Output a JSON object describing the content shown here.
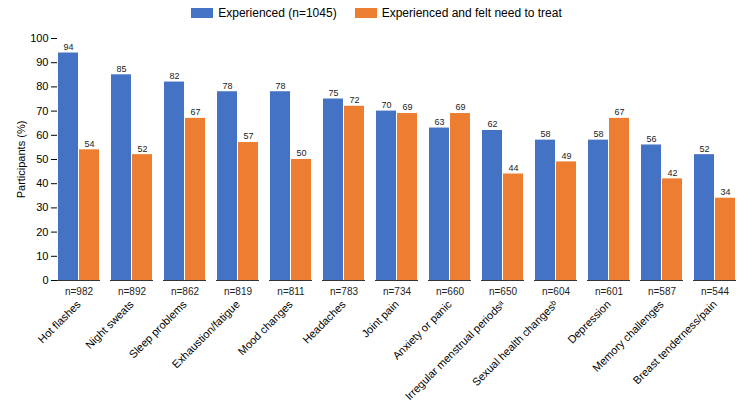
{
  "chart_data": {
    "type": "bar",
    "categories": [
      "Hot flashes",
      "Night sweats",
      "Sleep problems",
      "Exhaustion/fatigue",
      "Mood changes",
      "Headaches",
      "Joint pain",
      "Anxiety or panic",
      "Irregular menstrual periodsᵃ",
      "Sexual health changesᵇ",
      "Depression",
      "Memory challenges",
      "Breast tenderness/pain"
    ],
    "category_n": [
      "n=982",
      "n=892",
      "n=862",
      "n=819",
      "n=811",
      "n=783",
      "n=734",
      "n=660",
      "n=650",
      "n=604",
      "n=601",
      "n=587",
      "n=544"
    ],
    "series": [
      {
        "name": "Experienced (n=1045)",
        "color": "#4472c4",
        "values": [
          94,
          85,
          82,
          78,
          78,
          75,
          70,
          63,
          62,
          58,
          58,
          56,
          52
        ]
      },
      {
        "name": "Experienced and felt need to treat",
        "color": "#ed7d31",
        "values": [
          54,
          52,
          67,
          57,
          50,
          72,
          69,
          69,
          44,
          49,
          67,
          42,
          34
        ]
      }
    ],
    "y_label": "Participants (%)",
    "ylim": [
      0,
      100
    ],
    "yticks": [
      0,
      10,
      20,
      30,
      40,
      50,
      60,
      70,
      80,
      90,
      100
    ],
    "data_labels": true,
    "legend": "top",
    "grid": false
  }
}
